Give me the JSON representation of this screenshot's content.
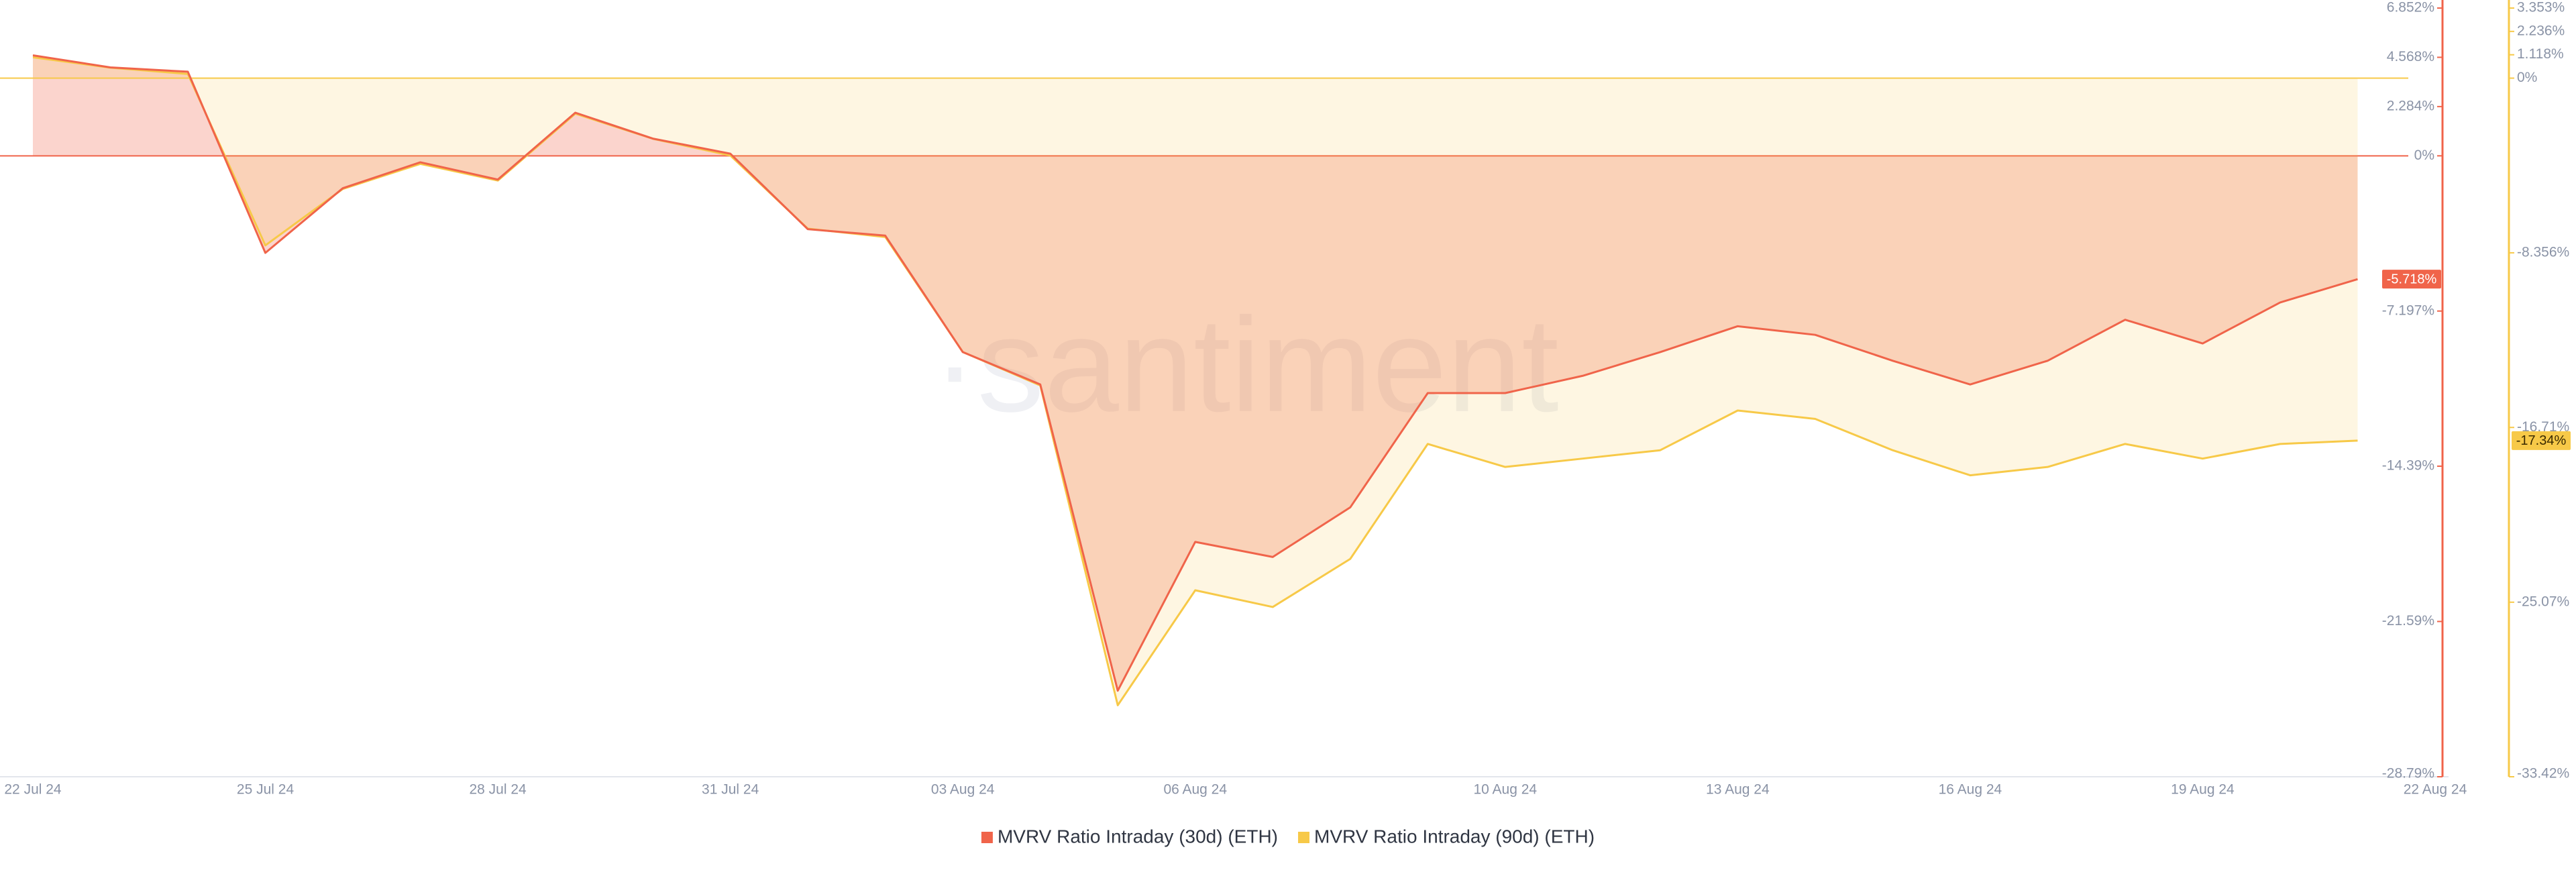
{
  "chart_data": {
    "type": "line",
    "watermark": "·santiment",
    "categories": [
      "22 Jul 24",
      null,
      null,
      "25 Jul 24",
      null,
      null,
      "28 Jul 24",
      null,
      null,
      "31 Jul 24",
      null,
      null,
      "03 Aug 24",
      null,
      null,
      "06 Aug 24",
      null,
      null,
      null,
      "10 Aug 24",
      null,
      null,
      "13 Aug 24",
      null,
      null,
      "16 Aug 24",
      null,
      null,
      "19 Aug 24",
      null,
      null,
      "22 Aug 24"
    ],
    "series": [
      {
        "name": "MVRV Ratio Intraday (30d) (ETH)",
        "color": "#f0644a",
        "axis": "y",
        "values": [
          4.66,
          4.1,
          3.9,
          -4.5,
          -1.5,
          -0.3,
          -1.1,
          2.0,
          0.8,
          0.1,
          -3.4,
          -3.7,
          -9.1,
          -10.6,
          -24.8,
          -17.9,
          -18.6,
          -16.3,
          -11.0,
          -11.0,
          -10.2,
          -9.1,
          -7.9,
          -8.3,
          -9.5,
          -10.6,
          -9.5,
          -7.6,
          -8.7,
          -6.8,
          -5.718,
          null
        ],
        "value_labels": [
          null,
          null,
          null,
          null,
          null,
          null,
          null,
          null,
          null,
          null,
          null,
          null,
          null,
          null,
          null,
          null,
          null,
          null,
          null,
          null,
          null,
          null,
          null,
          null,
          null,
          null,
          null,
          null,
          null,
          null,
          "-5.718%",
          null
        ]
      },
      {
        "name": "MVRV Ratio Intraday (90d) (ETH)",
        "color": "#f7c948",
        "axis": "y2",
        "values": [
          1.0,
          0.5,
          0.2,
          -8.0,
          -5.3,
          -4.1,
          -4.9,
          -1.7,
          -2.9,
          -3.7,
          -7.2,
          -7.6,
          -13.1,
          -14.7,
          -30.0,
          -24.5,
          -25.3,
          -23.0,
          -17.5,
          -18.6,
          -18.2,
          -17.8,
          -15.9,
          -16.3,
          -17.8,
          -19.0,
          -18.6,
          -17.5,
          -18.2,
          -17.5,
          -17.34,
          null
        ],
        "value_labels": [
          null,
          null,
          null,
          null,
          null,
          null,
          null,
          null,
          null,
          null,
          null,
          null,
          null,
          null,
          null,
          null,
          null,
          null,
          null,
          null,
          null,
          null,
          null,
          null,
          null,
          null,
          null,
          null,
          null,
          null,
          "-17.34%",
          null
        ]
      }
    ],
    "ylim": [
      -28.79,
      6.852
    ],
    "yticks": [
      {
        "value": 6.852,
        "label": "6.852%"
      },
      {
        "value": 4.568,
        "label": "4.568%"
      },
      {
        "value": 2.284,
        "label": "2.284%"
      },
      {
        "value": 0,
        "label": "0%"
      },
      {
        "value": -7.197,
        "label": "-7.197%"
      },
      {
        "value": -14.39,
        "label": "-14.39%"
      },
      {
        "value": -21.59,
        "label": "-21.59%"
      },
      {
        "value": -28.79,
        "label": "-28.79%"
      }
    ],
    "y2lim": [
      -33.42,
      3.353
    ],
    "y2ticks": [
      {
        "value": 3.353,
        "label": "3.353%"
      },
      {
        "value": 2.236,
        "label": "2.236%"
      },
      {
        "value": 1.118,
        "label": "1.118%"
      },
      {
        "value": 0,
        "label": "0%"
      },
      {
        "value": -8.356,
        "label": "-8.356%"
      },
      {
        "value": -16.71,
        "label": "-16.71%"
      },
      {
        "value": -25.07,
        "label": "-25.07%"
      },
      {
        "value": -33.42,
        "label": "-33.42%"
      }
    ]
  }
}
